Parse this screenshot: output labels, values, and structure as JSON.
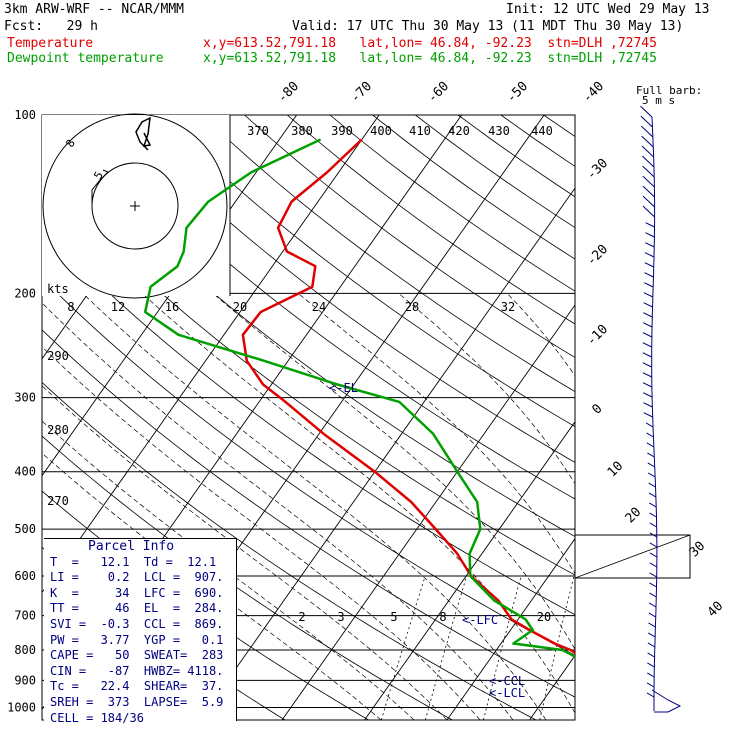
{
  "header": {
    "model": "3km ARW-WRF -- NCAR/MMM",
    "init": "Init: 12 UTC Wed 29 May 13",
    "fcst": "Fcst:   29 h",
    "valid": "Valid: 17 UTC Thu 30 May 13 (11 MDT Thu 30 May 13)",
    "temp_label": "Temperature",
    "dew_label": "Dewpoint temperature",
    "temp_info": "x,y=613.52,791.18   lat,lon= 46.84, -92.23  stn=DLH ,72745",
    "dew_info": "x,y=613.52,791.18   lat,lon= 46.84, -92.23  stn=DLH ,72745"
  },
  "colors": {
    "temperature": "#e00000",
    "dewpoint": "#00a000",
    "annotation": "#000080",
    "grid": "#000000"
  },
  "chart_data": {
    "type": "line",
    "title": "",
    "xlabel": "",
    "ylabel": "",
    "pressure_levels": [
      "100",
      "200",
      "300",
      "400",
      "500",
      "600",
      "700",
      "800",
      "900",
      "1000"
    ],
    "temp_tick_labels": [
      "-80",
      "-70",
      "-60",
      "-50",
      "-40",
      "-30",
      "-20",
      "-10",
      "0",
      "10",
      "20",
      "30",
      "40"
    ],
    "theta_labels": [
      "370",
      "380",
      "390",
      "400",
      "410",
      "420",
      "430",
      "440",
      "290",
      "280",
      "270"
    ],
    "mixing_ratio_labels": [
      "2",
      "3",
      "5",
      "8",
      "20"
    ],
    "hodograph": {
      "units": "kts",
      "ring_labels": [
        "5",
        "8"
      ],
      "axis_ticks": [
        "8",
        "12",
        "16",
        "20",
        "24",
        "28",
        "32"
      ]
    },
    "wind_legend": {
      "line1": "Full barb:",
      "line2": "5 m s"
    },
    "series": [
      {
        "name": "Temperature",
        "x": [
          -60.0,
          -61.4,
          -63.2,
          -62.6,
          -59.5,
          -54.8,
          -53.4,
          -57.5,
          -57.7,
          -55.0,
          -51.0,
          -46.8,
          -39.5,
          -30.0,
          -23.0,
          -17.7,
          -13.0,
          -9.4,
          -4.0,
          -0.8,
          2.3,
          6.5,
          9.0,
          11.5,
          12.1
        ],
        "y": [
          110,
          125,
          140,
          155,
          170,
          180,
          195,
          215,
          235,
          260,
          285,
          305,
          345,
          400,
          450,
          500,
          550,
          600,
          660,
          710,
          740,
          780,
          800,
          830,
          850
        ]
      },
      {
        "name": "Dewpoint temperature",
        "x": [
          -65.0,
          -70.6,
          -73.3,
          -73.7,
          -72.0,
          -71.5,
          -73.0,
          -71.5,
          -65.5,
          -52.9,
          -42.0,
          -33.0,
          -26.2,
          -20.0,
          -15.0,
          -12.3,
          -11.5,
          -9.5,
          -4.5,
          0.9,
          2.7,
          1.5,
          8.0,
          11.0,
          12.1
        ],
        "y": [
          110,
          125,
          140,
          155,
          170,
          180,
          195,
          215,
          235,
          260,
          285,
          305,
          345,
          400,
          450,
          500,
          550,
          600,
          660,
          710,
          740,
          780,
          800,
          830,
          850
        ]
      }
    ],
    "annotations": [
      "<-EL",
      "<-LFC",
      "<-CCL",
      "<-LCL"
    ],
    "parcel_info": {
      "title": "Parcel Info",
      "rows": [
        "T  =   12.1  Td =  12.1",
        "LI =    0.2  LCL =  907.",
        "K  =     34  LFC =  690.",
        "TT =     46  EL  =  284.",
        "SVI =  -0.3  CCL =  869.",
        "PW =   3.77  YGP =   0.1",
        "CAPE =   50  SWEAT=  283",
        "CIN =   -87  HWBZ= 4118.",
        "Tc =   22.4  SHEAR=  37.",
        "SREH =  373  LAPSE=  5.9",
        "CELL = 184/36"
      ]
    }
  }
}
